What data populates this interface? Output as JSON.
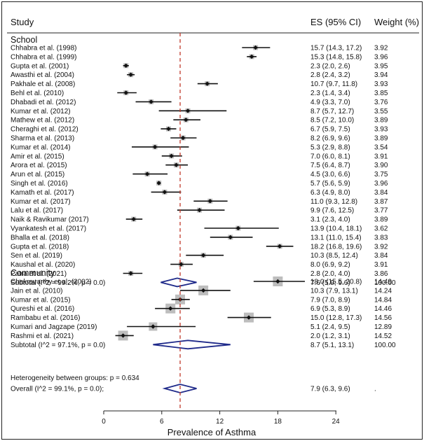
{
  "chart_data": {
    "type": "forest",
    "headers": {
      "study": "Study",
      "es": "ES (95% CI)",
      "weight": "Weight (%)"
    },
    "xlabel": "Prevalence of Asthma",
    "xticks": [
      0,
      6,
      12,
      18,
      24
    ],
    "xlim": [
      -2.5,
      28
    ],
    "reference_line": 7.9,
    "groups": [
      {
        "name": "School",
        "studies": [
          {
            "label": "Chhabra et al. (1998)",
            "es": 15.7,
            "lo": 14.3,
            "hi": 17.2,
            "es_text": "15.7 (14.3, 17.2)",
            "weight": "3.92"
          },
          {
            "label": "Chhabra et al. (1999)",
            "es": 15.3,
            "lo": 14.8,
            "hi": 15.8,
            "es_text": "15.3 (14.8, 15.8)",
            "weight": "3.96"
          },
          {
            "label": "Gupta et al. (2001)",
            "es": 2.3,
            "lo": 2.0,
            "hi": 2.6,
            "es_text": "2.3 (2.0, 2.6)",
            "weight": "3.95"
          },
          {
            "label": "Awasthi et al. (2004)",
            "es": 2.8,
            "lo": 2.4,
            "hi": 3.2,
            "es_text": "2.8 (2.4, 3.2)",
            "weight": "3.94"
          },
          {
            "label": "Pakhale et al. (2008)",
            "es": 10.7,
            "lo": 9.7,
            "hi": 11.8,
            "es_text": "10.7 (9.7, 11.8)",
            "weight": "3.93"
          },
          {
            "label": "Behl et al. (2010)",
            "es": 2.3,
            "lo": 1.4,
            "hi": 3.4,
            "es_text": "2.3 (1.4, 3.4)",
            "weight": "3.85"
          },
          {
            "label": "Dhabadi et al. (2012)",
            "es": 4.9,
            "lo": 3.3,
            "hi": 7.0,
            "es_text": "4.9 (3.3, 7.0)",
            "weight": "3.76"
          },
          {
            "label": "Kumar et al. (2012)",
            "es": 8.7,
            "lo": 5.7,
            "hi": 12.7,
            "es_text": "8.7 (5.7, 12.7)",
            "weight": "3.55"
          },
          {
            "label": "Mathew et al. (2012)",
            "es": 8.5,
            "lo": 7.2,
            "hi": 10.0,
            "es_text": "8.5 (7.2, 10.0)",
            "weight": "3.89"
          },
          {
            "label": "Cheraghi et al. (2012)",
            "es": 6.7,
            "lo": 5.9,
            "hi": 7.5,
            "es_text": "6.7 (5.9, 7.5)",
            "weight": "3.93"
          },
          {
            "label": "Sharma et al. (2013)",
            "es": 8.2,
            "lo": 6.9,
            "hi": 9.6,
            "es_text": "8.2 (6.9, 9.6)",
            "weight": "3.89"
          },
          {
            "label": "Kumar et al. (2014)",
            "es": 5.3,
            "lo": 2.9,
            "hi": 8.8,
            "es_text": "5.3 (2.9, 8.8)",
            "weight": "3.54"
          },
          {
            "label": "Amir et al. (2015)",
            "es": 7.0,
            "lo": 6.0,
            "hi": 8.1,
            "es_text": "7.0 (6.0, 8.1)",
            "weight": "3.91"
          },
          {
            "label": "Arora et al. (2015)",
            "es": 7.5,
            "lo": 6.4,
            "hi": 8.7,
            "es_text": "7.5 (6.4, 8.7)",
            "weight": "3.90"
          },
          {
            "label": "Arun et al. (2015)",
            "es": 4.5,
            "lo": 3.0,
            "hi": 6.6,
            "es_text": "4.5 (3.0, 6.6)",
            "weight": "3.75"
          },
          {
            "label": "Singh et al. (2016)",
            "es": 5.7,
            "lo": 5.6,
            "hi": 5.9,
            "es_text": "5.7 (5.6, 5.9)",
            "weight": "3.96"
          },
          {
            "label": "Kamath et al. (2017)",
            "es": 6.3,
            "lo": 4.9,
            "hi": 8.0,
            "es_text": "6.3 (4.9, 8.0)",
            "weight": "3.84"
          },
          {
            "label": "Kumar et al. (2017)",
            "es": 11.0,
            "lo": 9.3,
            "hi": 12.8,
            "es_text": "11.0 (9.3, 12.8)",
            "weight": "3.87"
          },
          {
            "label": "Lalu et al. (2017)",
            "es": 9.9,
            "lo": 7.6,
            "hi": 12.5,
            "es_text": "9.9 (7.6, 12.5)",
            "weight": "3.77"
          },
          {
            "label": "Naik & Ravikumar (2017)",
            "es": 3.1,
            "lo": 2.3,
            "hi": 4.0,
            "es_text": "3.1 (2.3, 4.0)",
            "weight": "3.89"
          },
          {
            "label": "Vyankatesh et al. (2017)",
            "es": 13.9,
            "lo": 10.4,
            "hi": 18.1,
            "es_text": "13.9 (10.4, 18.1)",
            "weight": "3.62"
          },
          {
            "label": "Bhalla et al. (2018)",
            "es": 13.1,
            "lo": 11.0,
            "hi": 15.4,
            "es_text": "13.1 (11.0, 15.4)",
            "weight": "3.83"
          },
          {
            "label": "Gupta et al. (2018)",
            "es": 18.2,
            "lo": 16.8,
            "hi": 19.6,
            "es_text": "18.2 (16.8, 19.6)",
            "weight": "3.92"
          },
          {
            "label": "Sen et al. (2019)",
            "es": 10.3,
            "lo": 8.5,
            "hi": 12.4,
            "es_text": "10.3 (8.5, 12.4)",
            "weight": "3.84"
          },
          {
            "label": "Kaushal et al. (2020)",
            "es": 8.0,
            "lo": 6.9,
            "hi": 9.2,
            "es_text": "8.0 (6.9, 9.2)",
            "weight": "3.91"
          },
          {
            "label": "Patra et al. (2021)",
            "es": 2.8,
            "lo": 2.0,
            "hi": 4.0,
            "es_text": "2.8 (2.0, 4.0)",
            "weight": "3.86"
          }
        ],
        "subtotal": {
          "label": "Subtotal  (I^2 = 99.2%, p = 0.0)",
          "es": 7.6,
          "lo": 5.9,
          "hi": 9.6,
          "es_text": "7.6 (5.9, 9.6)",
          "weight": "100.00"
        }
      },
      {
        "name": "Community",
        "studies": [
          {
            "label": "Chakravarthy et al. (2002)",
            "es": 18.0,
            "lo": 15.5,
            "hi": 20.8,
            "es_text": "18.0 (15.5, 20.8)",
            "weight": "14.49"
          },
          {
            "label": "Jain et al. (2010)",
            "es": 10.3,
            "lo": 7.9,
            "hi": 13.1,
            "es_text": "10.3 (7.9, 13.1)",
            "weight": "14.24"
          },
          {
            "label": "Kumar et al. (2015)",
            "es": 7.9,
            "lo": 7.0,
            "hi": 8.9,
            "es_text": "7.9 (7.0, 8.9)",
            "weight": "14.84"
          },
          {
            "label": "Qureshi  et al. (2016)",
            "es": 6.9,
            "lo": 5.3,
            "hi": 8.9,
            "es_text": "6.9 (5.3, 8.9)",
            "weight": "14.46"
          },
          {
            "label": "Rambabu et al. (2016)",
            "es": 15.0,
            "lo": 12.8,
            "hi": 17.3,
            "es_text": "15.0 (12.8, 17.3)",
            "weight": "14.56"
          },
          {
            "label": "Kumari and Jagzape (2019)",
            "es": 5.1,
            "lo": 2.4,
            "hi": 9.5,
            "es_text": "5.1 (2.4, 9.5)",
            "weight": "12.89"
          },
          {
            "label": "Rashmi et al. (2021)",
            "es": 2.0,
            "lo": 1.2,
            "hi": 3.1,
            "es_text": "2.0 (1.2, 3.1)",
            "weight": "14.52"
          }
        ],
        "subtotal": {
          "label": "Subtotal  (I^2 = 97.1%, p = 0.0)",
          "es": 8.7,
          "lo": 5.1,
          "hi": 13.1,
          "es_text": "8.7 (5.1, 13.1)",
          "weight": "100.00"
        }
      }
    ],
    "heterogeneity": "Heterogeneity between groups: p = 0.634",
    "overall": {
      "label": "Overall  (I^2 = 99.1%, p = 0.0);",
      "es": 7.9,
      "lo": 6.3,
      "hi": 9.6,
      "es_text": "7.9 (6.3, 9.6)",
      "weight": "."
    }
  }
}
